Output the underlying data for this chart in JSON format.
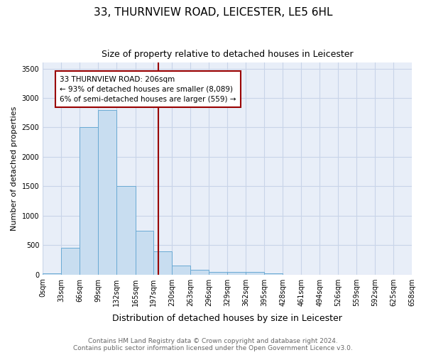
{
  "title": "33, THURNVIEW ROAD, LEICESTER, LE5 6HL",
  "subtitle": "Size of property relative to detached houses in Leicester",
  "xlabel": "Distribution of detached houses by size in Leicester",
  "ylabel": "Number of detached properties",
  "bin_edges": [
    0,
    33,
    66,
    99,
    132,
    165,
    197,
    230,
    263,
    296,
    329,
    362,
    395,
    428,
    461,
    494,
    526,
    559,
    592,
    625,
    658
  ],
  "bar_heights": [
    20,
    460,
    2500,
    2800,
    1500,
    750,
    390,
    150,
    80,
    50,
    40,
    40,
    20,
    0,
    0,
    0,
    0,
    0,
    0,
    0
  ],
  "bar_facecolor": "#c8ddf0",
  "bar_edgecolor": "#6aaad4",
  "property_size": 206,
  "vline_color": "#990000",
  "annotation_text": "33 THURNVIEW ROAD: 206sqm\n← 93% of detached houses are smaller (8,089)\n6% of semi-detached houses are larger (559) →",
  "annotation_box_edgecolor": "#990000",
  "annotation_box_facecolor": "#ffffff",
  "ylim": [
    0,
    3600
  ],
  "yticks": [
    0,
    500,
    1000,
    1500,
    2000,
    2500,
    3000,
    3500
  ],
  "grid_color": "#c8d4e8",
  "background_color": "#e8eef8",
  "footer_line1": "Contains HM Land Registry data © Crown copyright and database right 2024.",
  "footer_line2": "Contains public sector information licensed under the Open Government Licence v3.0.",
  "title_fontsize": 11,
  "subtitle_fontsize": 9,
  "tick_fontsize": 7,
  "ylabel_fontsize": 8,
  "xlabel_fontsize": 9,
  "footer_fontsize": 6.5
}
